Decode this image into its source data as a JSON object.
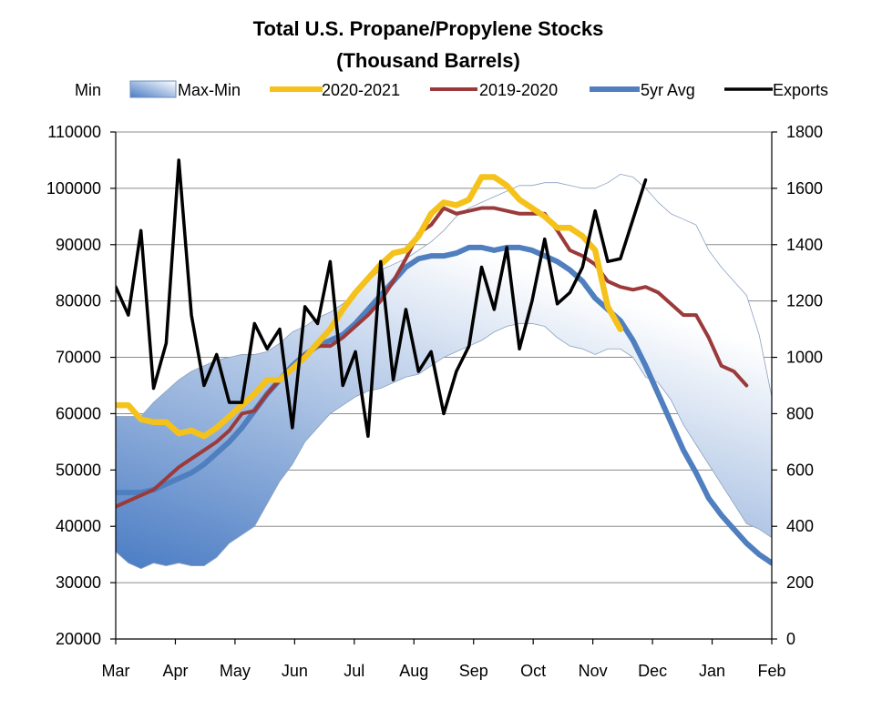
{
  "chart_data": {
    "type": "line",
    "title_line1": "Total U.S. Propane/Propylene Stocks",
    "title_line2": "(Thousand Barrels)",
    "legend": {
      "min_label": "Min",
      "band_label": "Max-Min",
      "s2020_label": "2020-2021",
      "s2019_label": "2019-2020",
      "avg_label": "5yr Avg",
      "exports_label": "Exports"
    },
    "colors": {
      "s2020": "#f5c21b",
      "s2019": "#9b3a3a",
      "avg": "#4f7fbf",
      "exports": "#000000",
      "band_dark": "#4a7cc4",
      "band_light": "#ffffff"
    },
    "left_axis": {
      "min": 20000,
      "max": 110000,
      "step": 10000,
      "ticks": [
        "20000",
        "30000",
        "40000",
        "50000",
        "60000",
        "70000",
        "80000",
        "90000",
        "100000",
        "110000"
      ]
    },
    "right_axis": {
      "min": 0,
      "max": 1800,
      "step": 200,
      "ticks": [
        "0",
        "200",
        "400",
        "600",
        "800",
        "1000",
        "1200",
        "1400",
        "1600",
        "1800"
      ]
    },
    "months": [
      "Mar",
      "Apr",
      "May",
      "Jun",
      "Jul",
      "Aug",
      "Sep",
      "Oct",
      "Nov",
      "Dec",
      "Jan",
      "Feb"
    ],
    "week_count": 53,
    "max": [
      59500,
      59500,
      59500,
      62000,
      64000,
      66000,
      67500,
      68500,
      69500,
      70000,
      70500,
      70500,
      71000,
      72500,
      74500,
      75500,
      77000,
      78000,
      79500,
      81000,
      83500,
      85500,
      86500,
      87500,
      89000,
      90500,
      92500,
      95000,
      96500,
      97500,
      98500,
      99500,
      100500,
      100500,
      101000,
      101000,
      100500,
      100000,
      100000,
      101000,
      102500,
      102000,
      100000,
      97500,
      95500,
      94500,
      93500,
      89000,
      86000,
      83500,
      81000,
      74000,
      63000
    ],
    "min": [
      35500,
      33500,
      32500,
      33500,
      33000,
      33500,
      33000,
      33000,
      34500,
      37000,
      38500,
      40000,
      44000,
      48000,
      51000,
      55000,
      57500,
      60000,
      61500,
      63000,
      64000,
      64500,
      65500,
      66500,
      67000,
      68500,
      70000,
      71000,
      72000,
      73000,
      74500,
      75500,
      76000,
      76000,
      75500,
      73500,
      72000,
      71500,
      70500,
      71500,
      71500,
      70000,
      66500,
      65500,
      62500,
      58000,
      54500,
      51000,
      47500,
      44000,
      40500,
      39500,
      38000
    ],
    "avg": [
      46000,
      46000,
      46000,
      46500,
      47500,
      48500,
      49500,
      51000,
      53000,
      55000,
      57500,
      60500,
      63500,
      66000,
      68500,
      70500,
      72000,
      73000,
      74000,
      76000,
      78500,
      81000,
      83500,
      86000,
      87500,
      88000,
      88000,
      88500,
      89500,
      89500,
      89000,
      89500,
      89500,
      89000,
      88000,
      87000,
      85500,
      83500,
      80500,
      78500,
      76500,
      73000,
      68500,
      63500,
      58500,
      53500,
      49500,
      45000,
      42000,
      39500,
      37000,
      35000,
      33500
    ],
    "s2019": [
      43500,
      44500,
      45500,
      46500,
      48500,
      50500,
      52000,
      53500,
      55000,
      57000,
      60000,
      60500,
      63500,
      66000,
      68000,
      70500,
      72000,
      72000,
      73500,
      75500,
      77500,
      80000,
      83500,
      87500,
      92000,
      93500,
      96500,
      95500,
      96000,
      96500,
      96500,
      96000,
      95500,
      95500,
      95500,
      92500,
      89000,
      88000,
      86500,
      83500,
      82500,
      82000,
      82500,
      81500,
      79500,
      77500,
      77500,
      73500,
      68500,
      67500,
      65000
    ],
    "s2020": [
      61500,
      61500,
      59000,
      58500,
      58500,
      56500,
      57000,
      56000,
      57500,
      59500,
      61500,
      63500,
      66000,
      66000,
      68000,
      70000,
      72500,
      75000,
      78500,
      81500,
      84000,
      86500,
      88500,
      89000,
      91500,
      95500,
      97500,
      97000,
      98000,
      102000,
      102000,
      100500,
      98000,
      96500,
      95000,
      93000,
      93000,
      91500,
      89000,
      79000,
      75000
    ],
    "exports": [
      1250,
      1150,
      1450,
      890,
      1050,
      1700,
      1150,
      900,
      1010,
      840,
      840,
      1120,
      1030,
      1100,
      750,
      1180,
      1120,
      1340,
      900,
      1020,
      720,
      1340,
      920,
      1170,
      950,
      1020,
      800,
      950,
      1040,
      1320,
      1170,
      1390,
      1030,
      1200,
      1420,
      1190,
      1230,
      1320,
      1520,
      1340,
      1350,
      1490,
      1630
    ]
  }
}
